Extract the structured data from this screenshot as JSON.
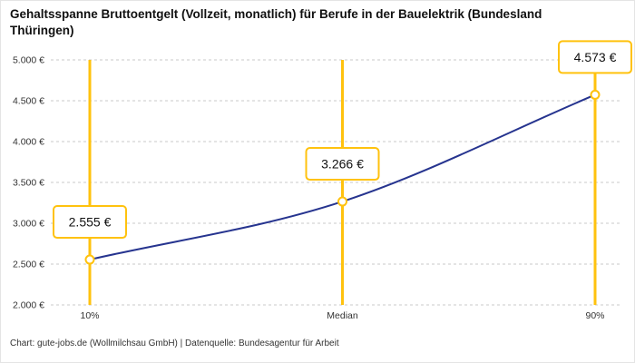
{
  "title": "Gehaltsspanne Bruttoentgelt (Vollzeit, monatlich) für Berufe in der Bauelektrik (Bundesland Thüringen)",
  "footer": "Chart: gute-jobs.de (Wollmilchsau GmbH) | Datenquelle: Bundesagentur für Arbeit",
  "colors": {
    "accent_yellow": "#FFC20E",
    "line_blue": "#26348F",
    "grid": "#c9c9c9",
    "text_dark": "#111111",
    "text_axis": "#333333"
  },
  "chart_data": {
    "type": "line",
    "categories": [
      "10%",
      "Median",
      "90%"
    ],
    "values": [
      2555,
      3266,
      4573
    ],
    "value_labels": [
      "2.555 €",
      "3.266 €",
      "4.573 €"
    ],
    "title": "Gehaltsspanne Bruttoentgelt (Vollzeit, monatlich) für Berufe in der Bauelektrik (Bundesland Thüringen)",
    "xlabel": "",
    "ylabel": "",
    "ylim": [
      2000,
      5000
    ],
    "ytick_step": 500,
    "ytick_labels": [
      "2.000 €",
      "2.500 €",
      "3.000 €",
      "3.500 €",
      "4.000 €",
      "4.500 €",
      "5.000 €"
    ],
    "grid": true,
    "grid_style": "dashed",
    "legend": "none",
    "marker": "open-circle",
    "annotation_boxes": true
  }
}
